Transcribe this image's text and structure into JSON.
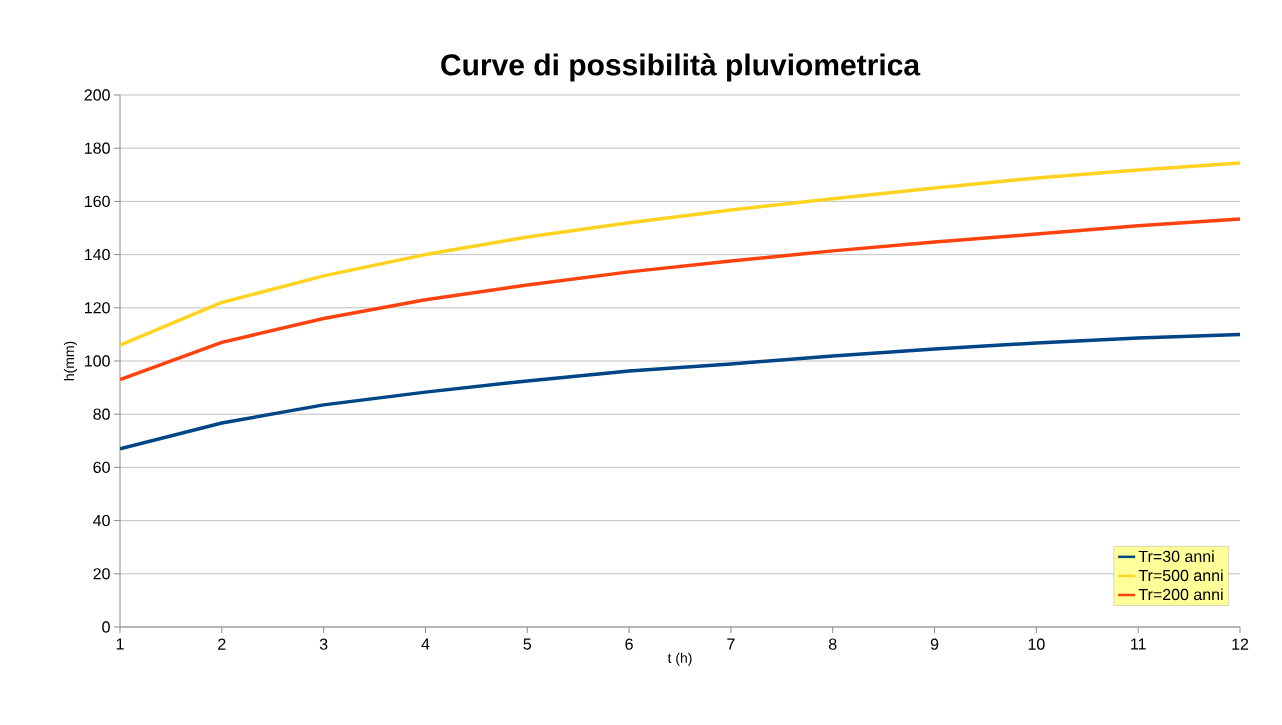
{
  "chart_data": {
    "type": "line",
    "title": "Curve di possibilità pluviometrica",
    "xlabel": "t (h)",
    "ylabel": "h(mm)",
    "x": [
      1,
      2,
      3,
      4,
      5,
      6,
      7,
      8,
      9,
      10,
      11,
      12
    ],
    "series": [
      {
        "name": "Tr=30 anni",
        "color": "#004586",
        "values": [
          67,
          76.7,
          83.5,
          88.3,
          92.5,
          96.2,
          98.9,
          101.9,
          104.5,
          106.8,
          108.6,
          110
        ]
      },
      {
        "name": "Tr=500 anni",
        "color": "#ffd320",
        "values": [
          106,
          122,
          132,
          140,
          146.6,
          152,
          156.8,
          161,
          165,
          168.8,
          171.8,
          174.4
        ]
      },
      {
        "name": "Tr=200 anni",
        "color": "#ff420e",
        "values": [
          93,
          107,
          116,
          123,
          128.6,
          133.5,
          137.6,
          141.4,
          144.7,
          147.7,
          150.8,
          153.4
        ]
      }
    ],
    "xlim": [
      1,
      12
    ],
    "ylim": [
      0,
      200
    ],
    "xticks": [
      1,
      2,
      3,
      4,
      5,
      6,
      7,
      8,
      9,
      10,
      11,
      12
    ],
    "yticks": [
      0,
      20,
      40,
      60,
      80,
      100,
      120,
      140,
      160,
      180,
      200
    ],
    "grid": "y",
    "legend": "bottom right",
    "marker": "none",
    "line_style": "solid"
  }
}
